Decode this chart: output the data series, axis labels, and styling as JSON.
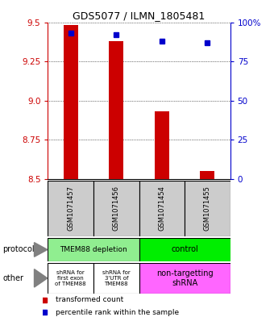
{
  "title": "GDS5077 / ILMN_1805481",
  "samples": [
    "GSM1071457",
    "GSM1071456",
    "GSM1071454",
    "GSM1071455"
  ],
  "red_values": [
    9.48,
    9.38,
    8.93,
    8.55
  ],
  "red_base": 8.5,
  "blue_values": [
    93,
    92,
    88,
    87
  ],
  "ylim_left": [
    8.5,
    9.5
  ],
  "ylim_right": [
    0,
    100
  ],
  "yticks_left": [
    8.5,
    8.75,
    9.0,
    9.25,
    9.5
  ],
  "yticks_right": [
    0,
    25,
    50,
    75,
    100
  ],
  "ytick_labels_right": [
    "0",
    "25",
    "50",
    "75",
    "100%"
  ],
  "bar_color": "#CC0000",
  "dot_color": "#0000CC",
  "left_label_color": "#CC0000",
  "right_label_color": "#0000CC",
  "sample_box_color": "#CCCCCC",
  "protocol_depletion_color": "#90EE90",
  "protocol_control_color": "#00EE00",
  "other_shrna_color": "#FFFFFF",
  "other_nontarget_color": "#FF66FF",
  "fig_width": 3.4,
  "fig_height": 3.93,
  "dpi": 100
}
